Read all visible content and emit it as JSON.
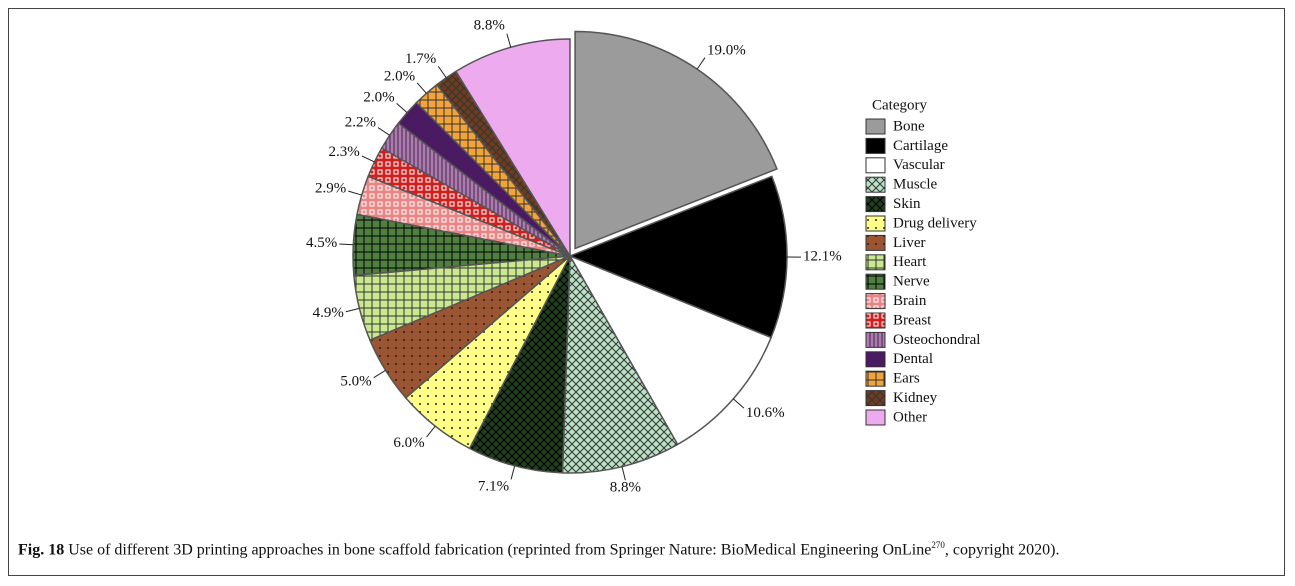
{
  "chart_data": {
    "type": "pie",
    "legend_title": "Category",
    "categories": [
      "Bone",
      "Cartilage",
      "Vascular",
      "Muscle",
      "Skin",
      "Drug delivery",
      "Liver",
      "Heart",
      "Nerve",
      "Brain",
      "Breast",
      "Osteochondral",
      "Dental",
      "Ears",
      "Kidney",
      "Other"
    ],
    "values": [
      19.0,
      12.1,
      10.6,
      8.8,
      7.1,
      6.0,
      5.0,
      4.9,
      4.5,
      2.9,
      2.3,
      2.2,
      2.0,
      2.0,
      1.7,
      8.8
    ],
    "value_labels": [
      "19.0%",
      "12.1%",
      "10.6%",
      "8.8%",
      "7.1%",
      "6.0%",
      "5.0%",
      "4.9%",
      "4.5%",
      "2.9%",
      "2.3%",
      "2.2%",
      "2.0%",
      "2.0%",
      "1.7%",
      "8.8%"
    ],
    "colors": [
      "#9b9b9b",
      "#000000",
      "#ffffff",
      "#b9e2c4",
      "#1f3f1f",
      "#ffff88",
      "#9c5532",
      "#c9e88f",
      "#4f7f41",
      "#ea8585",
      "#d01f1f",
      "#b277b6",
      "#521270",
      "#f2a33a",
      "#6e3c1f",
      "#eeaaee"
    ],
    "legend": "right"
  },
  "caption": {
    "label": "Fig. 18",
    "text": "Use of different 3D printing approaches in bone scaffold fabrication (reprinted from Springer Nature: BioMedical Engineering OnLine",
    "ref": "270",
    "end": ", copyright 2020)."
  }
}
